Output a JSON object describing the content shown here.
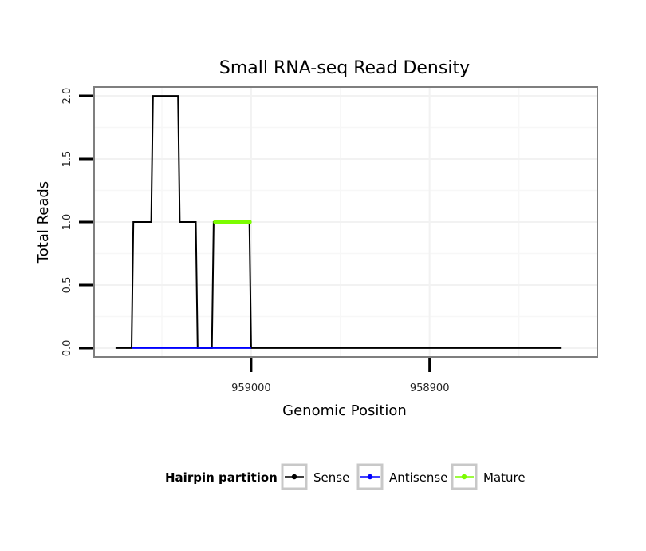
{
  "chart_data": {
    "type": "line",
    "title": "Small RNA-seq Read Density",
    "xlabel": "Genomic Position",
    "ylabel": "Total Reads",
    "x_reversed": true,
    "xlim": [
      959088,
      958806
    ],
    "ylim": [
      -0.07,
      2.07
    ],
    "x_ticks": [
      959000,
      958900
    ],
    "x_tick_labels": [
      "959000",
      "958900"
    ],
    "y_ticks": [
      0.0,
      0.5,
      1.0,
      1.5,
      2.0
    ],
    "y_tick_labels": [
      "0.0",
      "0.5",
      "1.0",
      "1.5",
      "2.0"
    ],
    "grid": true,
    "legend": {
      "title": "Hairpin partition",
      "position": "bottom",
      "entries": [
        {
          "label": "Sense",
          "color": "#000000"
        },
        {
          "label": "Antisense",
          "color": "#0000ff"
        },
        {
          "label": "Mature",
          "color": "#7cfc00"
        }
      ]
    },
    "series": [
      {
        "name": "Sense",
        "color": "#000000",
        "x": [
          959076,
          959067,
          959066,
          959056,
          959055,
          959041,
          959040,
          959031,
          959030,
          959022,
          959021,
          959001,
          959000,
          958982,
          958981,
          958826
        ],
        "y": [
          0,
          0,
          1,
          1,
          2,
          2,
          1,
          1,
          0,
          0,
          1,
          1,
          0,
          0,
          0,
          0
        ]
      },
      {
        "name": "Antisense",
        "color": "#0000ff",
        "x": [
          959067,
          959030,
          959021,
          959000
        ],
        "y": [
          0,
          0,
          0,
          0
        ]
      },
      {
        "name": "Mature",
        "color": "#7cfc00",
        "x": [
          959020,
          959001
        ],
        "y": [
          1,
          1
        ]
      }
    ]
  }
}
